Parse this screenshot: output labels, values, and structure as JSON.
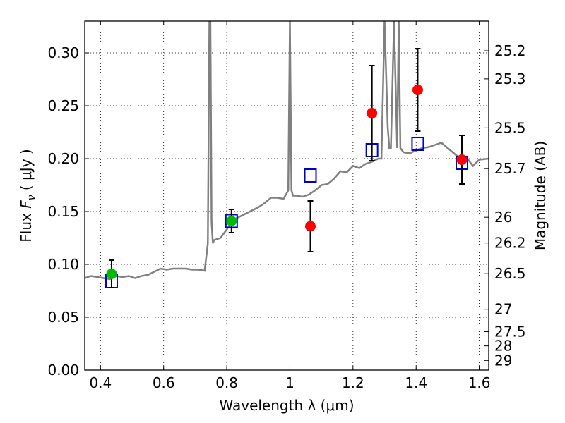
{
  "chart_data": {
    "type": "scatter",
    "xlabel": "Wavelength  λ (μm)",
    "ylabel": "Flux  F_ν  ( μJy )",
    "ylabel_parts": {
      "prefix": "Flux  ",
      "symbol": "F",
      "subscript": "ν",
      "suffix": "  ( μJy )"
    },
    "ylabel_right": "Magnitude (AB)",
    "xlim": [
      0.35,
      1.63
    ],
    "ylim": [
      0.0,
      0.33
    ],
    "grid": true,
    "xticks": [
      0.4,
      0.6,
      0.8,
      1.0,
      1.2,
      1.4,
      1.6
    ],
    "xtick_labels": [
      "0.4",
      "0.6",
      "0.8",
      "1",
      "1.2",
      "1.4",
      "1.6"
    ],
    "yticks": [
      0.0,
      0.05,
      0.1,
      0.15,
      0.2,
      0.25,
      0.3
    ],
    "ytick_labels": [
      "0.00",
      "0.05",
      "0.10",
      "0.15",
      "0.20",
      "0.25",
      "0.30"
    ],
    "right_ticks": [
      {
        "label": "25.2",
        "mag": 25.2
      },
      {
        "label": "25.3",
        "mag": 25.3
      },
      {
        "label": "25.5",
        "mag": 25.5
      },
      {
        "label": "25.7",
        "mag": 25.7
      },
      {
        "label": "26",
        "mag": 26.0
      },
      {
        "label": "26.2",
        "mag": 26.2
      },
      {
        "label": "26.5",
        "mag": 26.5
      },
      {
        "label": "27",
        "mag": 27.0
      },
      {
        "label": "27.5",
        "mag": 27.5
      },
      {
        "label": "28",
        "mag": 28.0
      },
      {
        "label": "29",
        "mag": 29.0
      }
    ],
    "colors": {
      "spectrum": "#808080",
      "model": "#0000cc",
      "green": "#00bb00",
      "red": "#ff0000",
      "errorbar": "#000000"
    },
    "model_points": {
      "x": [
        0.435,
        0.815,
        1.065,
        1.26,
        1.405,
        1.545
      ],
      "y": [
        0.084,
        0.141,
        0.184,
        0.208,
        0.214,
        0.196
      ]
    },
    "green_points": {
      "x": [
        0.435,
        0.815
      ],
      "y": [
        0.091,
        0.141
      ],
      "yerr": [
        0.013,
        0.011
      ]
    },
    "red_points": {
      "x": [
        1.065,
        1.26,
        1.405,
        1.545
      ],
      "y": [
        0.136,
        0.243,
        0.265,
        0.199
      ],
      "yerr": [
        0.024,
        0.045,
        0.039,
        0.023
      ]
    },
    "spectrum": {
      "x": [
        0.35,
        0.37,
        0.39,
        0.41,
        0.43,
        0.45,
        0.47,
        0.49,
        0.51,
        0.53,
        0.55,
        0.57,
        0.59,
        0.61,
        0.63,
        0.65,
        0.67,
        0.69,
        0.71,
        0.73,
        0.74,
        0.745,
        0.748,
        0.752,
        0.756,
        0.76,
        0.78,
        0.8,
        0.82,
        0.84,
        0.86,
        0.88,
        0.9,
        0.92,
        0.94,
        0.96,
        0.98,
        0.995,
        1.0,
        1.005,
        1.01,
        1.02,
        1.04,
        1.06,
        1.08,
        1.1,
        1.12,
        1.14,
        1.16,
        1.18,
        1.2,
        1.22,
        1.24,
        1.26,
        1.28,
        1.29,
        1.3,
        1.31,
        1.315,
        1.32,
        1.33,
        1.34,
        1.345,
        1.35,
        1.36,
        1.38,
        1.4,
        1.42,
        1.44,
        1.46,
        1.48,
        1.5,
        1.52,
        1.54,
        1.56,
        1.58,
        1.6,
        1.63
      ],
      "y": [
        0.087,
        0.089,
        0.088,
        0.087,
        0.086,
        0.089,
        0.088,
        0.089,
        0.087,
        0.089,
        0.09,
        0.093,
        0.096,
        0.095,
        0.096,
        0.096,
        0.096,
        0.095,
        0.095,
        0.094,
        0.12,
        0.33,
        0.33,
        0.14,
        0.12,
        0.123,
        0.125,
        0.133,
        0.142,
        0.145,
        0.148,
        0.151,
        0.154,
        0.158,
        0.163,
        0.163,
        0.162,
        0.17,
        0.33,
        0.17,
        0.165,
        0.165,
        0.164,
        0.166,
        0.17,
        0.175,
        0.176,
        0.181,
        0.188,
        0.187,
        0.193,
        0.191,
        0.195,
        0.197,
        0.2,
        0.2,
        0.33,
        0.23,
        0.21,
        0.21,
        0.33,
        0.21,
        0.33,
        0.21,
        0.206,
        0.205,
        0.208,
        0.21,
        0.211,
        0.213,
        0.215,
        0.21,
        0.205,
        0.2,
        0.201,
        0.193,
        0.199,
        0.2
      ]
    }
  }
}
